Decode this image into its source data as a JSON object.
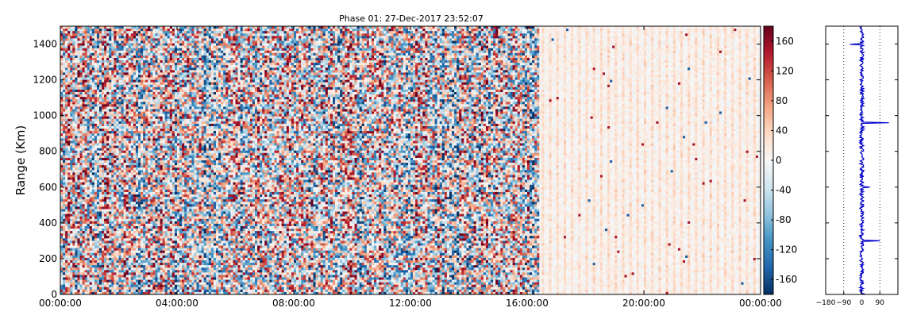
{
  "chart_data": [
    {
      "type": "heatmap",
      "title": "Phase 01: 27-Dec-2017 23:52:07",
      "ylabel": "Range (Km)",
      "xlabel": "",
      "x_tick_labels": [
        "00:00:00",
        "04:00:00",
        "08:00:00",
        "12:00:00",
        "16:00:00",
        "20:00:00",
        "00:00:00"
      ],
      "xlim_hours": [
        0,
        24
      ],
      "y_ticks": [
        0,
        200,
        400,
        600,
        800,
        1000,
        1200,
        1400
      ],
      "ylim": [
        0,
        1500
      ],
      "data_description_segments": [
        {
          "from_hour": 0,
          "to_hour": 16.4,
          "phase_range_deg": [
            -180,
            180
          ],
          "note": "random phase noise"
        },
        {
          "from_hour": 16.4,
          "to_hour": 24,
          "phase_range_deg": [
            -40,
            60
          ],
          "note": "near-zero phase"
        }
      ],
      "colormap": "RdBu_r",
      "colorbar": {
        "ticks": [
          -160,
          -120,
          -80,
          -40,
          0,
          40,
          80,
          120,
          160
        ],
        "range": [
          -180,
          180
        ]
      }
    },
    {
      "type": "line",
      "title": "",
      "x_tick_labels": [
        "-180",
        "-90",
        "0",
        "90"
      ],
      "x_ticks": [
        -180,
        -90,
        0,
        90
      ],
      "xlim": [
        -180,
        180
      ],
      "ylim": [
        0,
        1500
      ],
      "grid_x": true,
      "series_color": "#0000cc",
      "spikes": [
        {
          "range_km": 960,
          "phase_deg": 135
        },
        {
          "range_km": 300,
          "phase_deg": 90
        },
        {
          "range_km": 1400,
          "phase_deg": -60
        },
        {
          "range_km": 600,
          "phase_deg": 40
        }
      ]
    }
  ],
  "colors": {
    "series": "#0000cc",
    "axis": "#000000"
  }
}
